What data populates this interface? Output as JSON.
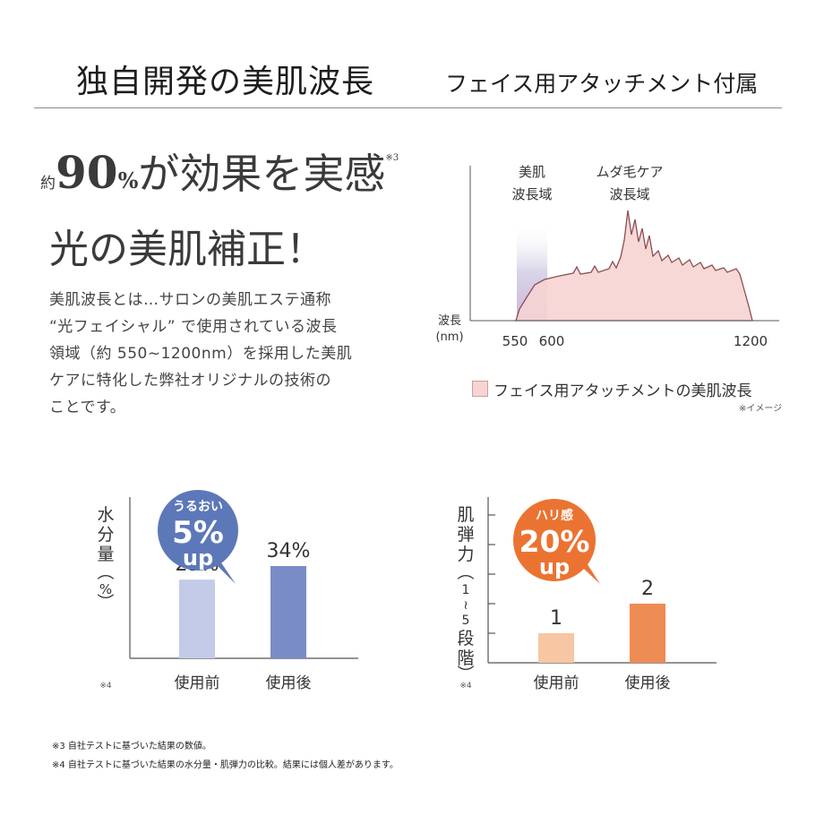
{
  "header": {
    "left_title": "独自開発の美肌波長",
    "right_title": "フェイス用アタッチメント付属"
  },
  "headline": {
    "prefix": "約",
    "number": "90",
    "percent": "%",
    "rest": "が効果を実感",
    "note": "※3",
    "line2": "光の美肌補正！"
  },
  "description": {
    "lines": [
      "美肌波長とは…サロンの美肌エステ通称",
      "“光フェイシャル” で使用されている波長",
      "領域（約 550~1200nm）を採用した美肌",
      "ケアに特化した弊社オリジナルの技術の",
      "ことです。"
    ]
  },
  "spectrum": {
    "label_skin": [
      "美肌",
      "波長域"
    ],
    "label_hair": [
      "ムダ毛ケア",
      "波長域"
    ],
    "axis_label": [
      "波長",
      "(nm)"
    ],
    "ticks": [
      "550",
      "600",
      "1200"
    ],
    "legend": "フェイス用アタッチメントの美肌波長",
    "legend_note": "※イメージ",
    "fill_color": "#f6d4d3",
    "stroke_color": "#8a4f52",
    "band_color": "#d5d0e6"
  },
  "chart_data": [
    {
      "type": "bar",
      "ylabel": "水分量(%)",
      "categories": [
        "使用前",
        "使用後"
      ],
      "values": [
        29,
        34
      ],
      "value_labels": [
        "29%",
        "34%"
      ],
      "colors": [
        "#c3cbe8",
        "#7a8cc6"
      ],
      "badge": {
        "line1": "うるおい",
        "line2": "5%",
        "line3": "up",
        "color": "#5d78b8"
      },
      "note": "※4"
    },
    {
      "type": "bar",
      "ylabel": "肌弾力(1~5段階)",
      "categories": [
        "使用前",
        "使用後"
      ],
      "values": [
        1,
        2
      ],
      "value_labels": [
        "1",
        "2"
      ],
      "ylim": [
        0,
        5
      ],
      "colors": [
        "#f7c6a3",
        "#ee8c55"
      ],
      "badge": {
        "line1": "ハリ感",
        "line2": "20%",
        "line3": "up",
        "color": "#eb7332"
      },
      "note": "※4"
    }
  ],
  "footnotes": [
    "※3  自社テストに基づいた結果の数値。",
    "※4  自社テストに基づいた結果の水分量・肌弾力の比較。結果には個人差があります。"
  ]
}
